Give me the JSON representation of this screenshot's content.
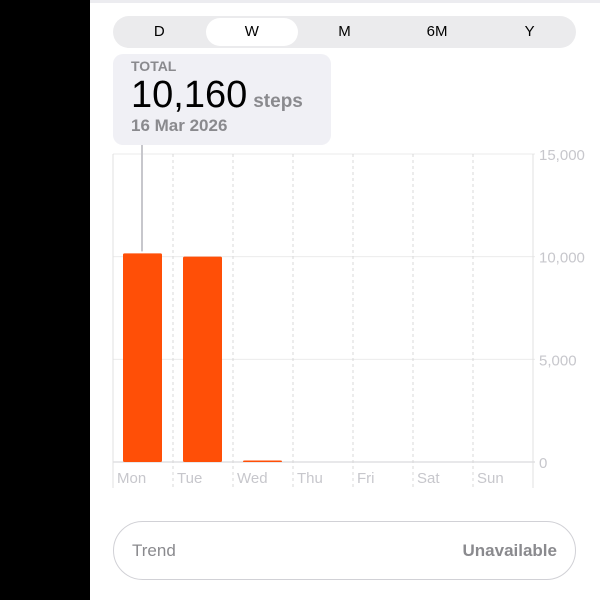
{
  "segments": [
    "D",
    "W",
    "M",
    "6M",
    "Y"
  ],
  "selected_segment": "W",
  "summary": {
    "label": "TOTAL",
    "value": "10,160",
    "unit": "steps",
    "date": "16 Mar 2026"
  },
  "trend": {
    "label": "Trend",
    "value": "Unavailable"
  },
  "colors": {
    "bar": "#ff4f07",
    "selection_line": "#c7c7cc"
  },
  "chart_data": {
    "type": "bar",
    "categories": [
      "Mon",
      "Tue",
      "Wed",
      "Thu",
      "Fri",
      "Sat",
      "Sun"
    ],
    "values": [
      10160,
      10000,
      60,
      0,
      0,
      0,
      0
    ],
    "ylim": [
      0,
      15000
    ],
    "yticks": [
      0,
      5000,
      10000,
      15000
    ],
    "ytick_labels": [
      "0",
      "5,000",
      "10,000",
      "15,000"
    ],
    "grid": true,
    "selected_category": "Mon"
  }
}
